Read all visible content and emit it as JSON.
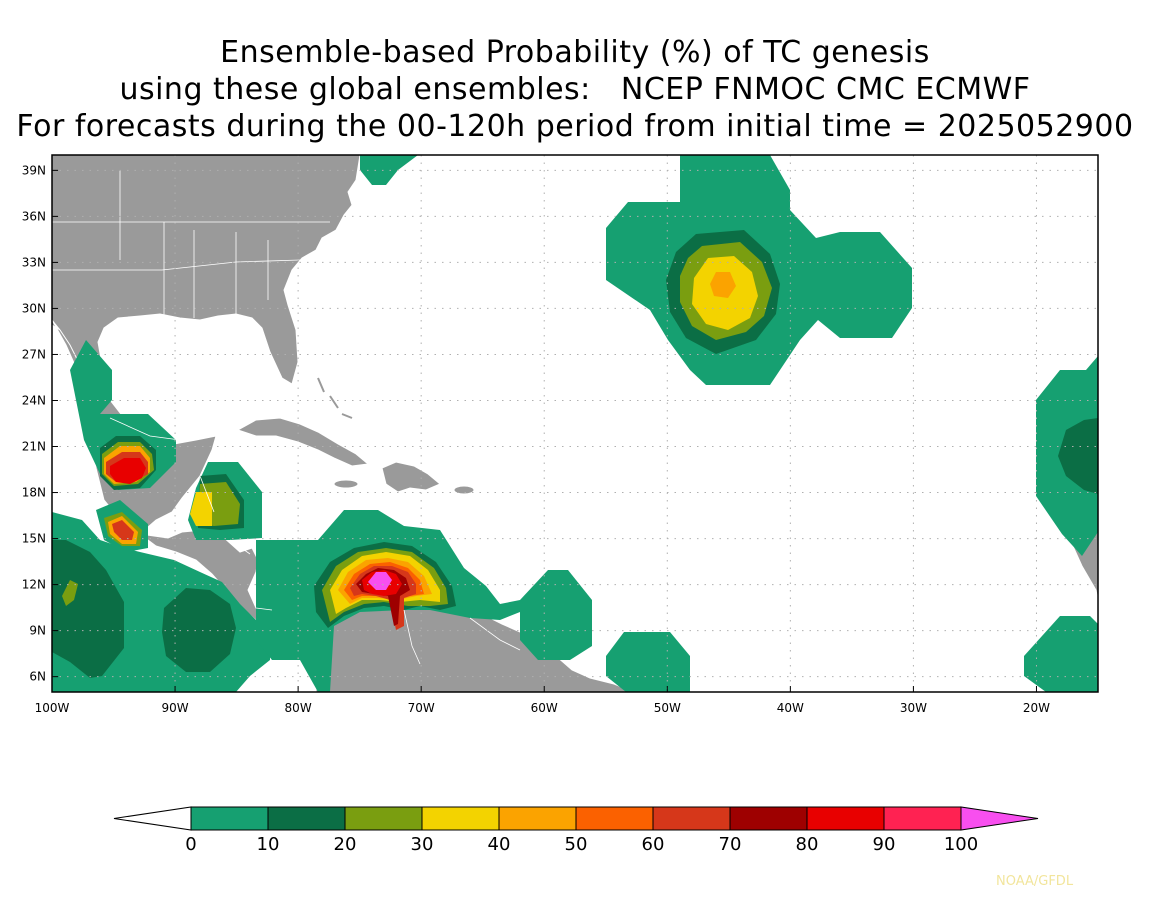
{
  "title": {
    "line1": "Ensemble-based Probability (%) of TC genesis",
    "line2": "using these global ensembles:   NCEP FNMOC CMC ECMWF",
    "line3": "For forecasts during the 00-120h period from initial time = 2025052900"
  },
  "axes": {
    "lon_labels": [
      "100W",
      "90W",
      "80W",
      "70W",
      "60W",
      "50W",
      "40W",
      "30W",
      "20W"
    ],
    "lat_labels": [
      "39N",
      "36N",
      "33N",
      "30N",
      "27N",
      "24N",
      "21N",
      "18N",
      "15N",
      "12N",
      "9N",
      "6N"
    ]
  },
  "colorbar": {
    "labels": [
      "0",
      "10",
      "20",
      "30",
      "40",
      "50",
      "60",
      "70",
      "80",
      "90",
      "100"
    ],
    "colors": [
      "#ffffff",
      "#16a071",
      "#0b6e45",
      "#7a9e10",
      "#f3d300",
      "#fba300",
      "#fb6100",
      "#d6371a",
      "#9e0000",
      "#e80000",
      "#ff2252",
      "#f84fef"
    ]
  },
  "map_colors": {
    "land": "#9a9a9a",
    "ocean": "#ffffff",
    "border": "#ffffff"
  },
  "credit": "NOAA/GFDL"
}
